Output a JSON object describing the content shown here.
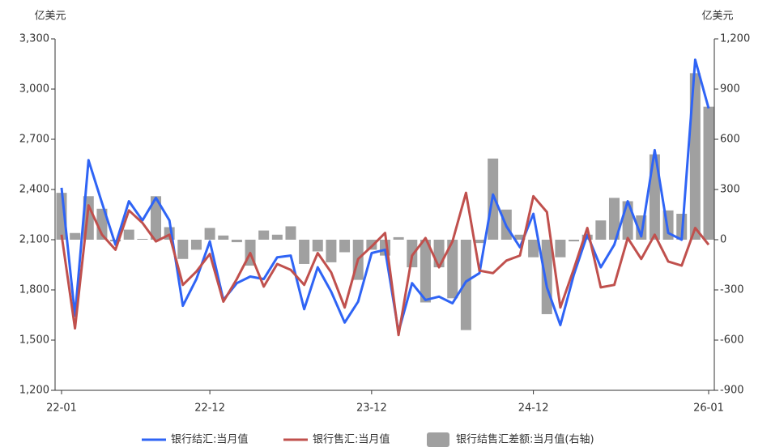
{
  "chart_data": {
    "type": "bar_line",
    "y_label": "亿美元",
    "y2_label": "亿美元",
    "categories": [
      "22-01",
      null,
      null,
      null,
      null,
      null,
      null,
      null,
      null,
      null,
      null,
      "22-12",
      null,
      null,
      null,
      null,
      null,
      null,
      null,
      null,
      null,
      null,
      null,
      "23-12",
      null,
      null,
      null,
      null,
      null,
      null,
      null,
      null,
      null,
      null,
      null,
      "24-12",
      null,
      null,
      null,
      null,
      null,
      null,
      null,
      null,
      null,
      null,
      null,
      null,
      "26-01"
    ],
    "series": [
      {
        "name": "银行结汇:当月值",
        "color": "#2f64f5",
        "kind": "line",
        "axis": "y",
        "values": [
          2410,
          1645,
          2575,
          2320,
          2070,
          2330,
          2215,
          2350,
          2215,
          1705,
          1865,
          2090,
          1740,
          1840,
          1880,
          1865,
          1995,
          2005,
          1685,
          1935,
          1790,
          1605,
          1730,
          2020,
          2040,
          1550,
          1840,
          1740,
          1760,
          1720,
          1850,
          1900,
          2370,
          2180,
          2055,
          2255,
          1815,
          1590,
          1890,
          2130,
          1935,
          2070,
          2330,
          2120,
          2635,
          2140,
          2100,
          3175,
          2885
        ]
      },
      {
        "name": "银行售汇:当月值",
        "color": "#c0504d",
        "kind": "line",
        "axis": "y",
        "values": [
          2130,
          1570,
          2305,
          2130,
          2040,
          2275,
          2200,
          2090,
          2130,
          1830,
          1910,
          2015,
          1730,
          1865,
          2020,
          1820,
          1955,
          1920,
          1830,
          2020,
          1905,
          1695,
          1985,
          2060,
          2140,
          1530,
          2005,
          2110,
          1935,
          2090,
          2380,
          1915,
          1900,
          1975,
          2005,
          2360,
          2265,
          1695,
          1925,
          2170,
          1815,
          1830,
          2110,
          1985,
          2130,
          1970,
          1945,
          2170,
          2070
        ]
      },
      {
        "name": "银行结售汇差额:当月值(右轴)",
        "color": "#a0a0a0",
        "kind": "bar",
        "axis": "y2",
        "values": [
          280,
          40,
          260,
          185,
          -10,
          60,
          5,
          260,
          75,
          -115,
          -60,
          70,
          25,
          -15,
          -155,
          55,
          30,
          80,
          -145,
          -70,
          -135,
          -75,
          -240,
          -60,
          -95,
          15,
          -165,
          -375,
          -165,
          -350,
          -540,
          -20,
          485,
          180,
          30,
          -105,
          -445,
          -105,
          -10,
          30,
          115,
          250,
          230,
          145,
          510,
          175,
          155,
          995,
          795
        ]
      }
    ],
    "ylim": [
      1200,
      3300
    ],
    "yticks": [
      {
        "value": 1200,
        "label": "1,200"
      },
      {
        "value": 1500,
        "label": "1,500"
      },
      {
        "value": 1800,
        "label": "1,800"
      },
      {
        "value": 2100,
        "label": "2,100"
      },
      {
        "value": 2400,
        "label": "2,400"
      },
      {
        "value": 2700,
        "label": "2,700"
      },
      {
        "value": 3000,
        "label": "3,000"
      },
      {
        "value": 3300,
        "label": "3,300"
      }
    ],
    "y2lim": [
      -900,
      1200
    ],
    "y2ticks": [
      -900,
      -600,
      -300,
      0,
      300,
      600,
      900,
      {
        "value": 1200,
        "label": "1,200"
      }
    ],
    "legend": "bottom"
  }
}
